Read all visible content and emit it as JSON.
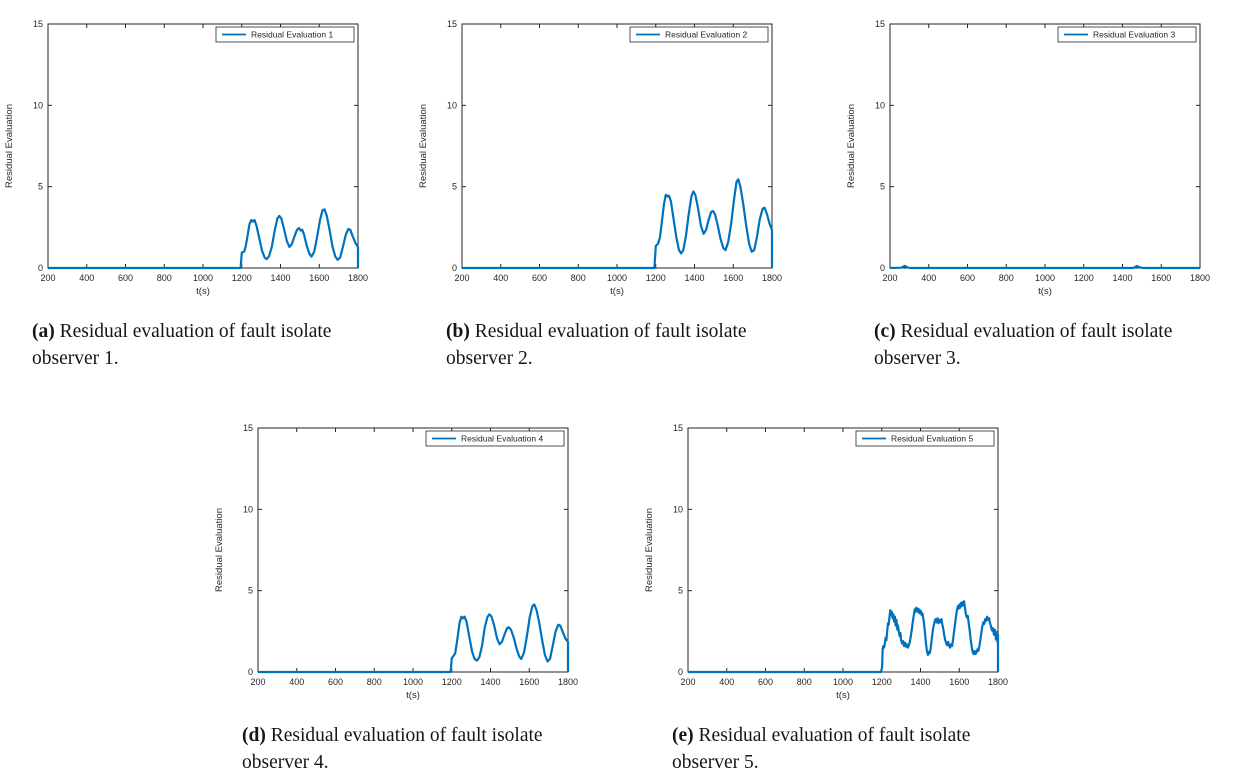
{
  "figure": {
    "background": "#ffffff",
    "accent_color": "#0072BD",
    "axis_color": "#262626",
    "panels": [
      {
        "id": "a",
        "label": "(a)",
        "caption": "Residual evaluation of fault isolate observer 1."
      },
      {
        "id": "b",
        "label": "(b)",
        "caption": "Residual evaluation of fault isolate observer 2."
      },
      {
        "id": "c",
        "label": "(c)",
        "caption": "Residual evaluation of fault isolate observer 3."
      },
      {
        "id": "d",
        "label": "(d)",
        "caption": "Residual evaluation of fault isolate observer 4."
      },
      {
        "id": "e",
        "label": "(e)",
        "caption": "Residual evaluation of fault isolate observer 5."
      }
    ]
  },
  "chart_data": [
    {
      "type": "line",
      "panel": "a",
      "legend": "Residual Evaluation 1",
      "legend_position": "top-right",
      "xlabel": "t(s)",
      "ylabel": "Residual Evaluation",
      "xlim": [
        200,
        1800
      ],
      "ylim": [
        0,
        15
      ],
      "xticks": [
        200,
        400,
        600,
        800,
        1000,
        1200,
        1400,
        1600,
        1800
      ],
      "yticks": [
        0,
        5,
        10,
        15
      ],
      "grid": false,
      "line_color": "#0072BD",
      "points": [
        [
          200,
          0
        ],
        [
          1194,
          0
        ],
        [
          1200,
          0.95
        ],
        [
          1212,
          1.0
        ],
        [
          1220,
          1.3
        ],
        [
          1230,
          2.0
        ],
        [
          1240,
          2.7
        ],
        [
          1250,
          2.95
        ],
        [
          1258,
          2.85
        ],
        [
          1266,
          2.95
        ],
        [
          1276,
          2.6
        ],
        [
          1290,
          1.85
        ],
        [
          1305,
          1.05
        ],
        [
          1318,
          0.65
        ],
        [
          1328,
          0.55
        ],
        [
          1340,
          0.7
        ],
        [
          1355,
          1.3
        ],
        [
          1370,
          2.3
        ],
        [
          1384,
          3.05
        ],
        [
          1394,
          3.2
        ],
        [
          1404,
          3.05
        ],
        [
          1418,
          2.4
        ],
        [
          1433,
          1.65
        ],
        [
          1446,
          1.3
        ],
        [
          1458,
          1.45
        ],
        [
          1472,
          1.95
        ],
        [
          1485,
          2.35
        ],
        [
          1495,
          2.45
        ],
        [
          1505,
          2.3
        ],
        [
          1512,
          2.35
        ],
        [
          1522,
          2.05
        ],
        [
          1536,
          1.35
        ],
        [
          1550,
          0.85
        ],
        [
          1560,
          0.7
        ],
        [
          1574,
          1.0
        ],
        [
          1589,
          1.9
        ],
        [
          1604,
          2.95
        ],
        [
          1617,
          3.55
        ],
        [
          1627,
          3.6
        ],
        [
          1639,
          3.2
        ],
        [
          1654,
          2.3
        ],
        [
          1669,
          1.3
        ],
        [
          1683,
          0.7
        ],
        [
          1695,
          0.5
        ],
        [
          1708,
          0.65
        ],
        [
          1722,
          1.3
        ],
        [
          1737,
          2.05
        ],
        [
          1750,
          2.4
        ],
        [
          1760,
          2.35
        ],
        [
          1774,
          1.9
        ],
        [
          1788,
          1.5
        ],
        [
          1800,
          1.3
        ],
        [
          1800,
          0
        ]
      ]
    },
    {
      "type": "line",
      "panel": "b",
      "legend": "Residual Evaluation 2",
      "legend_position": "top-right",
      "xlabel": "t(s)",
      "ylabel": "Residual Evaluation",
      "xlim": [
        200,
        1800
      ],
      "ylim": [
        0,
        15
      ],
      "xticks": [
        200,
        400,
        600,
        800,
        1000,
        1200,
        1400,
        1600,
        1800
      ],
      "yticks": [
        0,
        5,
        10,
        15
      ],
      "grid": false,
      "line_color": "#0072BD",
      "points": [
        [
          200,
          0
        ],
        [
          1193,
          0
        ],
        [
          1200,
          1.35
        ],
        [
          1212,
          1.5
        ],
        [
          1222,
          1.9
        ],
        [
          1232,
          2.9
        ],
        [
          1242,
          3.9
        ],
        [
          1252,
          4.5
        ],
        [
          1260,
          4.4
        ],
        [
          1268,
          4.45
        ],
        [
          1278,
          4.1
        ],
        [
          1292,
          3.0
        ],
        [
          1306,
          1.9
        ],
        [
          1320,
          1.1
        ],
        [
          1331,
          0.9
        ],
        [
          1342,
          1.1
        ],
        [
          1356,
          2.0
        ],
        [
          1370,
          3.3
        ],
        [
          1384,
          4.4
        ],
        [
          1394,
          4.7
        ],
        [
          1404,
          4.5
        ],
        [
          1418,
          3.7
        ],
        [
          1433,
          2.6
        ],
        [
          1447,
          2.1
        ],
        [
          1460,
          2.35
        ],
        [
          1474,
          3.0
        ],
        [
          1486,
          3.45
        ],
        [
          1496,
          3.5
        ],
        [
          1506,
          3.3
        ],
        [
          1520,
          2.6
        ],
        [
          1534,
          1.8
        ],
        [
          1548,
          1.25
        ],
        [
          1560,
          1.1
        ],
        [
          1574,
          1.6
        ],
        [
          1589,
          2.7
        ],
        [
          1604,
          4.2
        ],
        [
          1617,
          5.3
        ],
        [
          1626,
          5.45
        ],
        [
          1637,
          5.0
        ],
        [
          1652,
          3.9
        ],
        [
          1667,
          2.6
        ],
        [
          1682,
          1.5
        ],
        [
          1695,
          1.0
        ],
        [
          1708,
          1.1
        ],
        [
          1722,
          1.9
        ],
        [
          1737,
          3.0
        ],
        [
          1752,
          3.65
        ],
        [
          1762,
          3.7
        ],
        [
          1774,
          3.3
        ],
        [
          1788,
          2.7
        ],
        [
          1800,
          2.35
        ],
        [
          1800,
          0
        ]
      ]
    },
    {
      "type": "line",
      "panel": "c",
      "legend": "Residual Evaluation 3",
      "legend_position": "top-right",
      "xlabel": "t(s)",
      "ylabel": "Residual Evaluation",
      "xlim": [
        200,
        1800
      ],
      "ylim": [
        0,
        15
      ],
      "xticks": [
        200,
        400,
        600,
        800,
        1000,
        1200,
        1400,
        1600,
        1800
      ],
      "yticks": [
        0,
        5,
        10,
        15
      ],
      "grid": false,
      "line_color": "#0072BD",
      "points": [
        [
          200,
          0
        ],
        [
          258,
          0.02
        ],
        [
          268,
          0.08
        ],
        [
          276,
          0.13
        ],
        [
          284,
          0.08
        ],
        [
          294,
          0.02
        ],
        [
          310,
          0
        ],
        [
          1455,
          0
        ],
        [
          1465,
          0.06
        ],
        [
          1475,
          0.12
        ],
        [
          1484,
          0.07
        ],
        [
          1494,
          0.02
        ],
        [
          1510,
          0
        ],
        [
          1800,
          0
        ]
      ]
    },
    {
      "type": "line",
      "panel": "d",
      "legend": "Residual Evaluation 4",
      "legend_position": "top-right",
      "xlabel": "t(s)",
      "ylabel": "Residual Evaluation",
      "xlim": [
        200,
        1800
      ],
      "ylim": [
        0,
        15
      ],
      "xticks": [
        200,
        400,
        600,
        800,
        1000,
        1200,
        1400,
        1600,
        1800
      ],
      "yticks": [
        0,
        5,
        10,
        15
      ],
      "grid": false,
      "line_color": "#0072BD",
      "points": [
        [
          200,
          0
        ],
        [
          1194,
          0
        ],
        [
          1200,
          0.85
        ],
        [
          1210,
          1.0
        ],
        [
          1218,
          1.15
        ],
        [
          1228,
          1.95
        ],
        [
          1240,
          3.0
        ],
        [
          1250,
          3.4
        ],
        [
          1258,
          3.3
        ],
        [
          1266,
          3.4
        ],
        [
          1276,
          3.1
        ],
        [
          1290,
          2.2
        ],
        [
          1305,
          1.25
        ],
        [
          1318,
          0.8
        ],
        [
          1330,
          0.7
        ],
        [
          1342,
          0.9
        ],
        [
          1356,
          1.6
        ],
        [
          1371,
          2.8
        ],
        [
          1385,
          3.4
        ],
        [
          1395,
          3.55
        ],
        [
          1405,
          3.4
        ],
        [
          1419,
          2.85
        ],
        [
          1434,
          2.05
        ],
        [
          1447,
          1.7
        ],
        [
          1459,
          1.85
        ],
        [
          1472,
          2.3
        ],
        [
          1485,
          2.7
        ],
        [
          1495,
          2.75
        ],
        [
          1506,
          2.6
        ],
        [
          1520,
          2.1
        ],
        [
          1534,
          1.45
        ],
        [
          1548,
          0.95
        ],
        [
          1559,
          0.8
        ],
        [
          1573,
          1.2
        ],
        [
          1588,
          2.2
        ],
        [
          1603,
          3.4
        ],
        [
          1616,
          4.05
        ],
        [
          1626,
          4.15
        ],
        [
          1638,
          3.8
        ],
        [
          1652,
          3.0
        ],
        [
          1667,
          1.95
        ],
        [
          1681,
          1.05
        ],
        [
          1694,
          0.65
        ],
        [
          1707,
          0.8
        ],
        [
          1721,
          1.6
        ],
        [
          1736,
          2.5
        ],
        [
          1750,
          2.9
        ],
        [
          1760,
          2.85
        ],
        [
          1773,
          2.45
        ],
        [
          1787,
          2.05
        ],
        [
          1800,
          1.85
        ],
        [
          1800,
          0
        ]
      ]
    },
    {
      "type": "line",
      "panel": "e",
      "legend": "Residual Evaluation 5",
      "legend_position": "top-right",
      "xlabel": "t(s)",
      "ylabel": "Residual Evaluation",
      "xlim": [
        200,
        1800
      ],
      "ylim": [
        0,
        15
      ],
      "xticks": [
        200,
        400,
        600,
        800,
        1000,
        1200,
        1400,
        1600,
        1800
      ],
      "yticks": [
        0,
        5,
        10,
        15
      ],
      "grid": false,
      "line_color": "#0072BD",
      "points": [
        [
          200,
          0
        ],
        [
          1196,
          0
        ],
        [
          1202,
          0.3
        ],
        [
          1205,
          1.45
        ],
        [
          1208,
          1.6
        ],
        [
          1212,
          1.5
        ],
        [
          1216,
          1.75
        ],
        [
          1220,
          2.1
        ],
        [
          1224,
          1.95
        ],
        [
          1228,
          2.5
        ],
        [
          1232,
          3.0
        ],
        [
          1236,
          2.9
        ],
        [
          1240,
          3.4
        ],
        [
          1244,
          3.8
        ],
        [
          1248,
          3.5
        ],
        [
          1252,
          3.7
        ],
        [
          1256,
          3.3
        ],
        [
          1260,
          3.55
        ],
        [
          1264,
          3.1
        ],
        [
          1268,
          3.4
        ],
        [
          1272,
          2.85
        ],
        [
          1276,
          3.2
        ],
        [
          1280,
          2.6
        ],
        [
          1284,
          2.85
        ],
        [
          1288,
          2.5
        ],
        [
          1292,
          2.2
        ],
        [
          1296,
          2.4
        ],
        [
          1300,
          1.95
        ],
        [
          1305,
          1.75
        ],
        [
          1310,
          1.9
        ],
        [
          1315,
          1.6
        ],
        [
          1320,
          1.8
        ],
        [
          1325,
          1.55
        ],
        [
          1330,
          1.7
        ],
        [
          1335,
          1.5
        ],
        [
          1340,
          1.65
        ],
        [
          1345,
          1.85
        ],
        [
          1350,
          2.2
        ],
        [
          1355,
          2.6
        ],
        [
          1360,
          3.1
        ],
        [
          1365,
          3.45
        ],
        [
          1370,
          3.85
        ],
        [
          1374,
          3.7
        ],
        [
          1378,
          3.95
        ],
        [
          1382,
          3.75
        ],
        [
          1386,
          3.9
        ],
        [
          1390,
          3.65
        ],
        [
          1394,
          3.85
        ],
        [
          1398,
          3.6
        ],
        [
          1402,
          3.75
        ],
        [
          1406,
          3.5
        ],
        [
          1410,
          3.6
        ],
        [
          1414,
          3.35
        ],
        [
          1418,
          3.0
        ],
        [
          1423,
          2.4
        ],
        [
          1428,
          1.8
        ],
        [
          1433,
          1.3
        ],
        [
          1438,
          1.05
        ],
        [
          1443,
          1.25
        ],
        [
          1448,
          1.15
        ],
        [
          1453,
          1.5
        ],
        [
          1458,
          2.0
        ],
        [
          1463,
          2.5
        ],
        [
          1468,
          2.85
        ],
        [
          1473,
          3.1
        ],
        [
          1478,
          3.25
        ],
        [
          1483,
          3.05
        ],
        [
          1488,
          3.3
        ],
        [
          1493,
          3.0
        ],
        [
          1498,
          3.2
        ],
        [
          1503,
          3.05
        ],
        [
          1508,
          3.25
        ],
        [
          1513,
          2.9
        ],
        [
          1518,
          2.6
        ],
        [
          1523,
          2.25
        ],
        [
          1528,
          1.95
        ],
        [
          1533,
          1.75
        ],
        [
          1538,
          1.65
        ],
        [
          1543,
          1.85
        ],
        [
          1548,
          1.6
        ],
        [
          1553,
          1.5
        ],
        [
          1558,
          1.7
        ],
        [
          1563,
          1.6
        ],
        [
          1568,
          2.0
        ],
        [
          1573,
          2.45
        ],
        [
          1578,
          2.95
        ],
        [
          1583,
          3.4
        ],
        [
          1588,
          3.8
        ],
        [
          1593,
          4.05
        ],
        [
          1597,
          3.9
        ],
        [
          1601,
          4.15
        ],
        [
          1605,
          3.95
        ],
        [
          1609,
          4.25
        ],
        [
          1613,
          4.05
        ],
        [
          1617,
          4.3
        ],
        [
          1621,
          4.1
        ],
        [
          1625,
          4.35
        ],
        [
          1629,
          3.95
        ],
        [
          1634,
          3.6
        ],
        [
          1639,
          3.35
        ],
        [
          1644,
          3.45
        ],
        [
          1649,
          3.0
        ],
        [
          1654,
          2.55
        ],
        [
          1659,
          2.0
        ],
        [
          1664,
          1.55
        ],
        [
          1669,
          1.25
        ],
        [
          1674,
          1.1
        ],
        [
          1679,
          1.3
        ],
        [
          1684,
          1.1
        ],
        [
          1689,
          1.2
        ],
        [
          1694,
          1.4
        ],
        [
          1699,
          1.3
        ],
        [
          1704,
          1.6
        ],
        [
          1709,
          2.0
        ],
        [
          1714,
          2.4
        ],
        [
          1719,
          2.8
        ],
        [
          1724,
          3.05
        ],
        [
          1729,
          2.95
        ],
        [
          1734,
          3.25
        ],
        [
          1739,
          3.15
        ],
        [
          1744,
          3.4
        ],
        [
          1749,
          3.2
        ],
        [
          1754,
          3.3
        ],
        [
          1759,
          3.0
        ],
        [
          1764,
          2.8
        ],
        [
          1769,
          2.55
        ],
        [
          1774,
          2.7
        ],
        [
          1779,
          2.3
        ],
        [
          1784,
          2.6
        ],
        [
          1789,
          2.0
        ],
        [
          1794,
          2.45
        ],
        [
          1798,
          1.8
        ],
        [
          1800,
          2.3
        ],
        [
          1800,
          0
        ]
      ]
    }
  ]
}
